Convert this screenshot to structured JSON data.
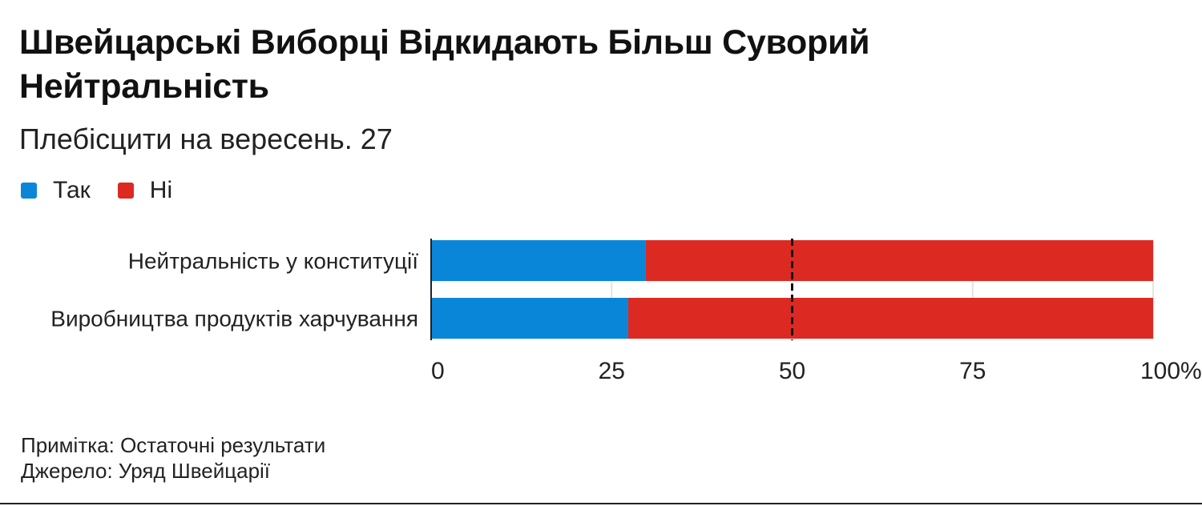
{
  "header": {
    "title": "Швейцарські Виборці Відкидають Більш Суворий Нейтральність",
    "subtitle": "Плебісцити на вересень. 27"
  },
  "legend": [
    {
      "label": "Так",
      "color": "#0a86d8"
    },
    {
      "label": "Ні",
      "color": "#dc2a22"
    }
  ],
  "chart_data": {
    "type": "bar",
    "orientation": "horizontal",
    "stacked": true,
    "categories": [
      "Нейтральність у конституції",
      "Виробництва продуктів харчування"
    ],
    "series": [
      {
        "name": "Так",
        "values": [
          29.7,
          27.3
        ],
        "color": "#0a86d8"
      },
      {
        "name": "Ні",
        "values": [
          70.3,
          72.7
        ],
        "color": "#dc2a22"
      }
    ],
    "xlim": [
      0,
      100
    ],
    "x_ticks": [
      {
        "value": 0,
        "label": "0"
      },
      {
        "value": 25,
        "label": "25"
      },
      {
        "value": 50,
        "label": "50"
      },
      {
        "value": 75,
        "label": "75"
      },
      {
        "value": 100,
        "label": "100%"
      }
    ],
    "reference_line": {
      "value": 50,
      "style": "dashed"
    },
    "grid": true
  },
  "footer": {
    "note": "Примітка: Остаточні результати",
    "source": "Джерело: Уряд Швейцарії"
  }
}
